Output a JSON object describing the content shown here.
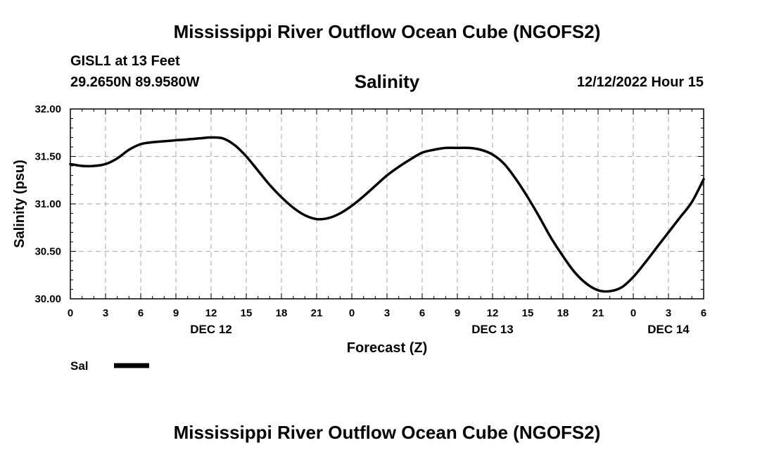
{
  "header": {
    "title": "Mississippi River Outflow Ocean Cube (NGOFS2)",
    "station": "GISL1 at 13 Feet",
    "coords": "29.2650N  89.9580W",
    "chart_title": "Salinity",
    "datetime": "12/12/2022 Hour 15"
  },
  "footer": {
    "title": "Mississippi River Outflow Ocean Cube (NGOFS2)"
  },
  "colors": {
    "line": "#000000",
    "grid": "#b5b5b5"
  },
  "chart_data": {
    "type": "line",
    "title": "Salinity",
    "xlabel": "Forecast (Z)",
    "ylabel": "Salinity (psu)",
    "ylim": [
      30.0,
      32.0
    ],
    "xlim": [
      0,
      54
    ],
    "grid": true,
    "yticks": [
      30.0,
      30.5,
      31.0,
      31.5,
      32.0
    ],
    "ytick_labels": [
      "30.00",
      "30.50",
      "31.00",
      "31.50",
      "32.00"
    ],
    "xticks": [
      0,
      3,
      6,
      9,
      12,
      15,
      18,
      21,
      24,
      27,
      30,
      33,
      36,
      39,
      42,
      45,
      48,
      51,
      54
    ],
    "xtick_labels": [
      "0",
      "3",
      "6",
      "9",
      "12",
      "15",
      "18",
      "21",
      "0",
      "3",
      "6",
      "9",
      "12",
      "15",
      "18",
      "21",
      "0",
      "3",
      "6"
    ],
    "day_labels": [
      {
        "x": 12,
        "label": "DEC 12"
      },
      {
        "x": 36,
        "label": "DEC 13"
      },
      {
        "x": 51,
        "label": "DEC 14"
      }
    ],
    "legend": {
      "position": "bottom-left",
      "entries": [
        "Sal"
      ]
    },
    "series": [
      {
        "name": "Sal",
        "x": [
          0,
          1,
          2,
          3,
          4,
          5,
          6,
          7,
          8,
          9,
          10,
          11,
          12,
          13,
          14,
          15,
          16,
          17,
          18,
          19,
          20,
          21,
          22,
          23,
          24,
          25,
          26,
          27,
          28,
          29,
          30,
          31,
          32,
          33,
          34,
          35,
          36,
          37,
          38,
          39,
          40,
          41,
          42,
          43,
          44,
          45,
          46,
          47,
          48,
          49,
          50,
          51,
          52,
          53,
          54
        ],
        "values": [
          31.42,
          31.4,
          31.4,
          31.42,
          31.48,
          31.57,
          31.63,
          31.65,
          31.66,
          31.67,
          31.68,
          31.69,
          31.7,
          31.69,
          31.62,
          31.5,
          31.35,
          31.2,
          31.07,
          30.96,
          30.88,
          30.84,
          30.85,
          30.9,
          30.98,
          31.08,
          31.19,
          31.3,
          31.39,
          31.47,
          31.54,
          31.57,
          31.59,
          31.59,
          31.59,
          31.57,
          31.52,
          31.42,
          31.26,
          31.07,
          30.86,
          30.64,
          30.45,
          30.28,
          30.16,
          30.09,
          30.08,
          30.12,
          30.23,
          30.38,
          30.54,
          30.7,
          30.86,
          31.02,
          31.26
        ]
      }
    ]
  }
}
